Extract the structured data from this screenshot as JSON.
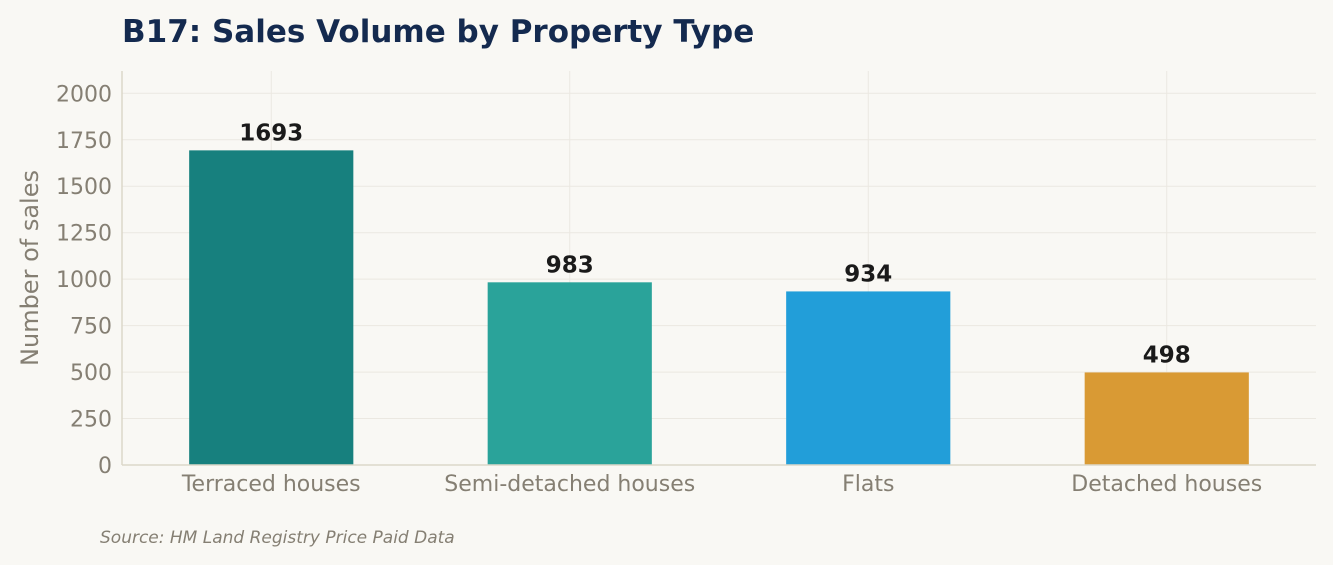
{
  "chart_data": {
    "type": "bar",
    "title": "B17: Sales Volume by Property Type",
    "xlabel": "",
    "ylabel": "Number of sales",
    "categories": [
      "Terraced houses",
      "Semi-detached houses",
      "Flats",
      "Detached houses"
    ],
    "values": [
      1693,
      983,
      934,
      498
    ],
    "data_labels": [
      "1693",
      "983",
      "934",
      "498"
    ],
    "colors": [
      "#17807e",
      "#2aa39a",
      "#229ed9",
      "#d99a34"
    ],
    "ylim": [
      0,
      2120
    ],
    "yticks": [
      0,
      250,
      500,
      750,
      1000,
      1250,
      1500,
      1750,
      2000
    ],
    "grid": true,
    "legend": "none"
  },
  "footer": {
    "source": "Source: HM Land Registry Price Paid Data"
  }
}
